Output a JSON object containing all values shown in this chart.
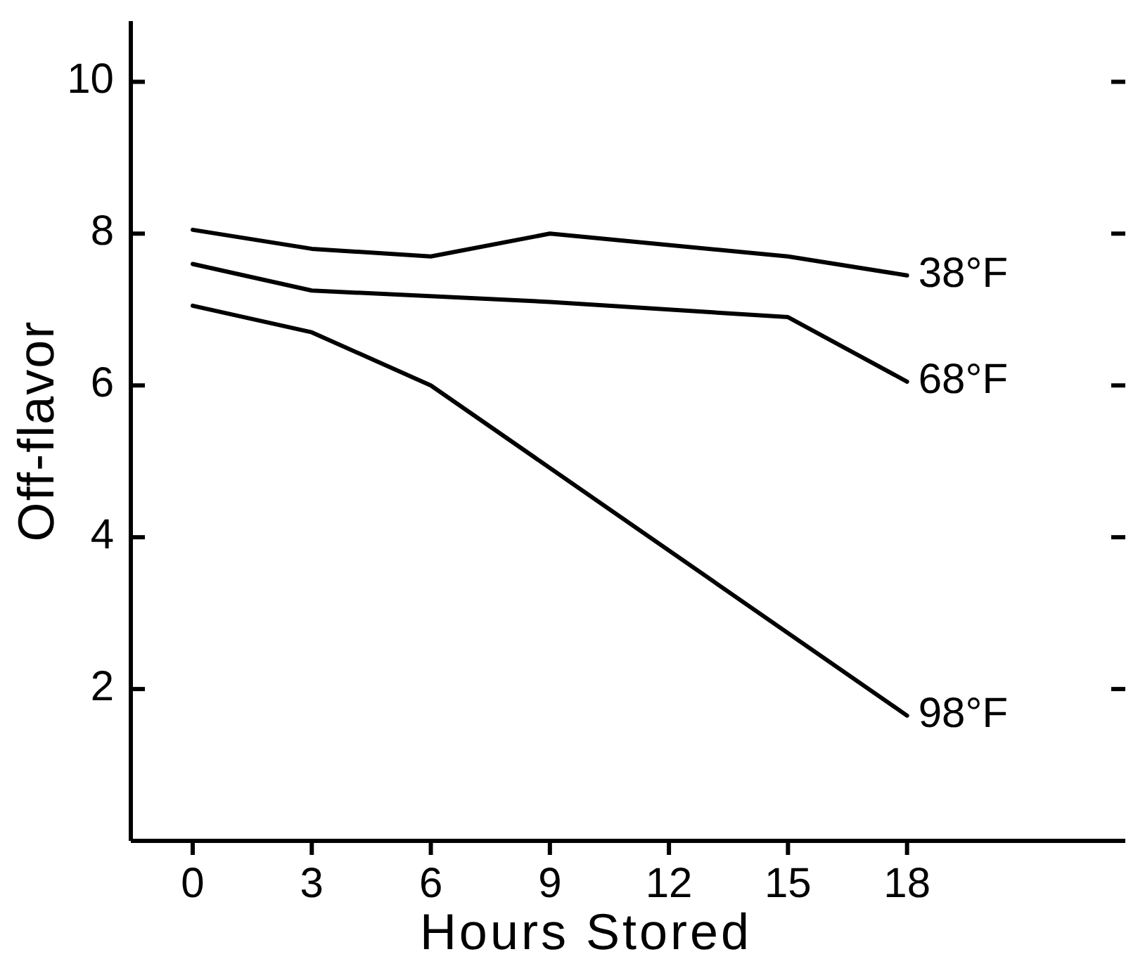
{
  "chart_data": {
    "type": "line",
    "xlabel": "Hours Stored",
    "ylabel": "Off-flavor",
    "xlim": [
      -1.56,
      23.5
    ],
    "ylim": [
      0,
      10.8
    ],
    "xticks": [
      0,
      3,
      6,
      9,
      12,
      15,
      18
    ],
    "yticks": [
      2,
      4,
      6,
      8,
      10
    ],
    "grid": false,
    "legend": false,
    "marker": "none",
    "line_style": "solid",
    "series": [
      {
        "name": "38°F",
        "color": "#000000",
        "x": [
          0,
          3,
          6,
          9,
          15,
          18
        ],
        "values": [
          8.05,
          7.8,
          7.7,
          8.0,
          7.7,
          7.45
        ]
      },
      {
        "name": "68°F",
        "color": "#000000",
        "x": [
          0,
          3,
          9,
          15,
          18
        ],
        "values": [
          7.6,
          7.25,
          7.1,
          6.9,
          6.05
        ]
      },
      {
        "name": "98°F",
        "color": "#000000",
        "x": [
          0,
          3,
          6,
          18
        ],
        "values": [
          7.05,
          6.7,
          6.0,
          1.65
        ]
      }
    ]
  }
}
